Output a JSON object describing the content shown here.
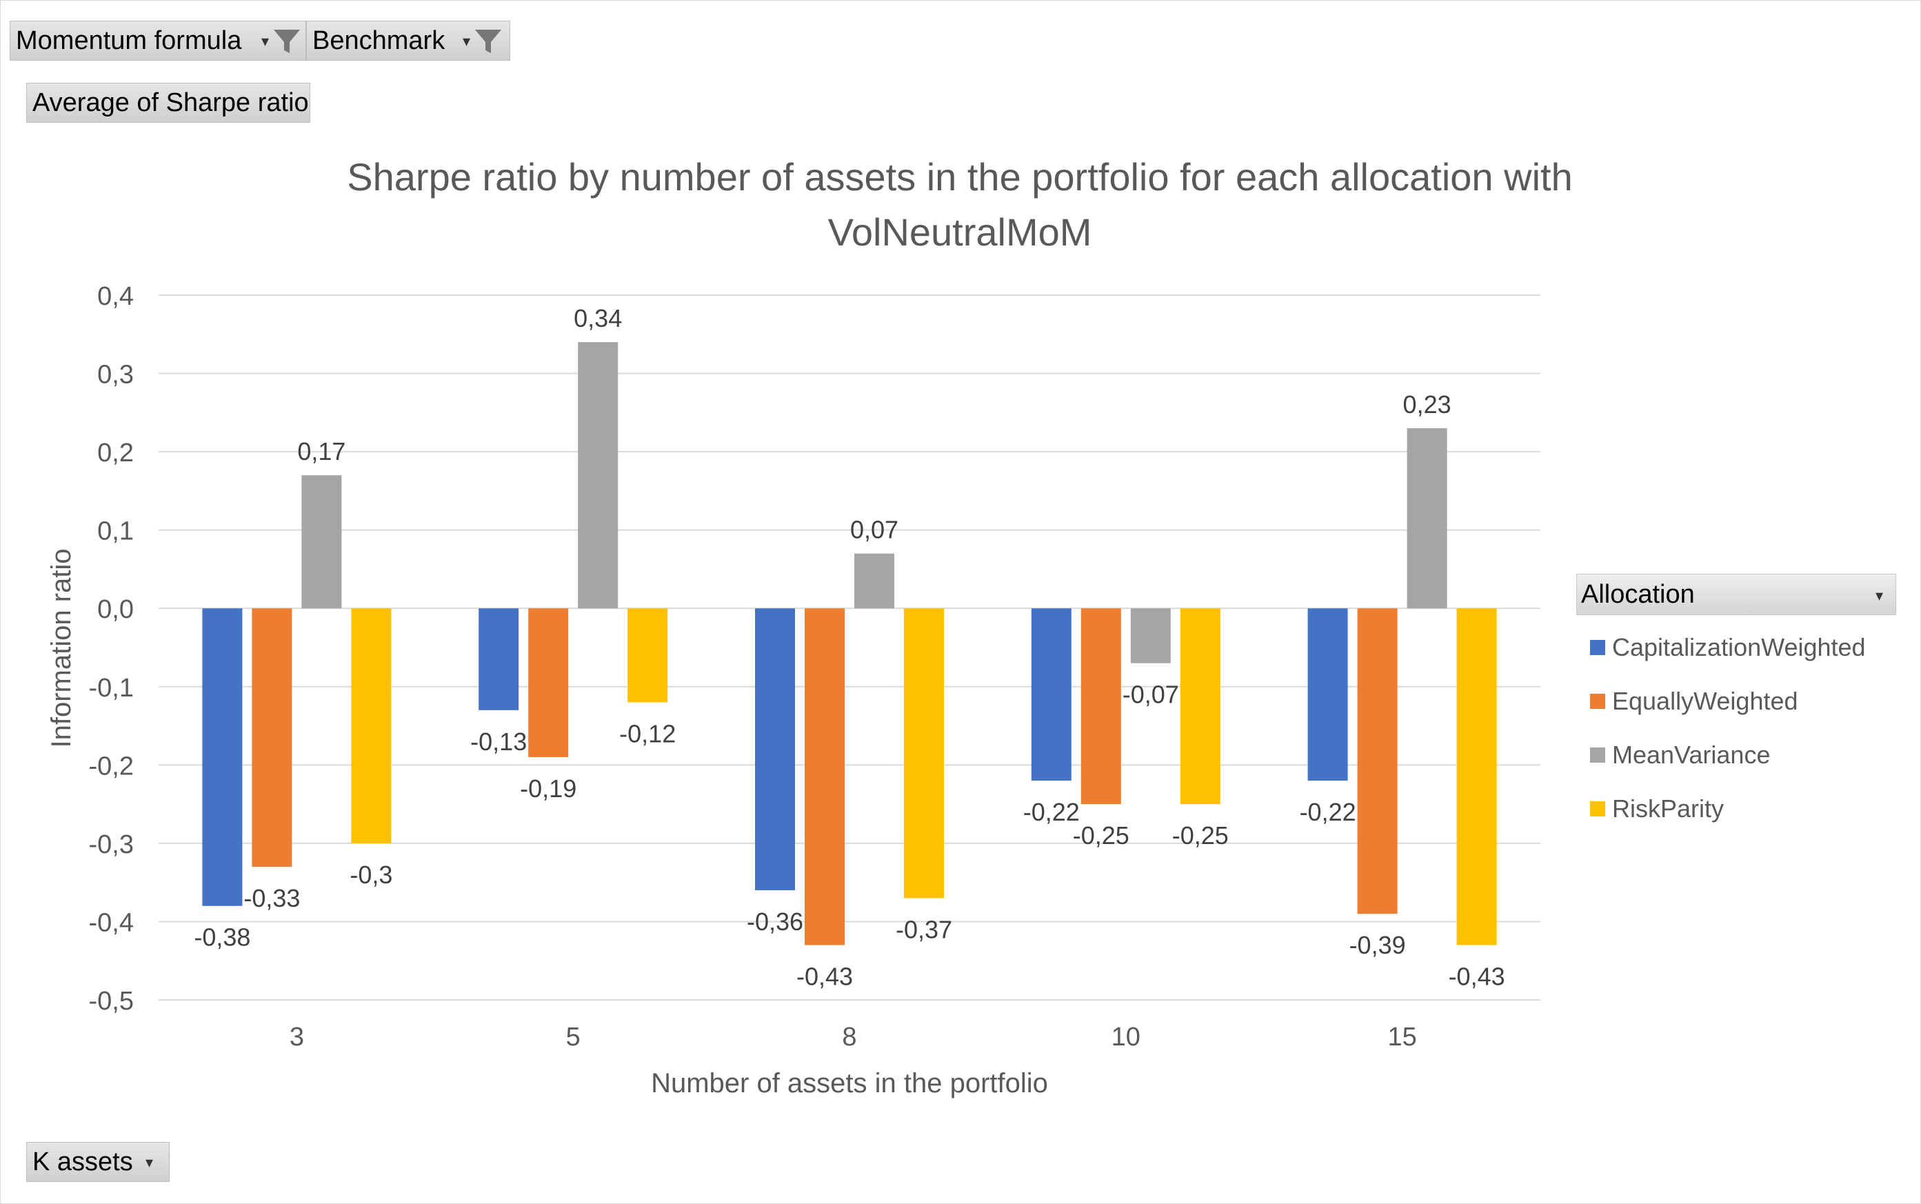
{
  "filters": {
    "momentum": {
      "label": "Momentum formula"
    },
    "benchmark": {
      "label": "Benchmark"
    }
  },
  "values_field": {
    "label": "Average  of Sharpe ratio"
  },
  "axis_field": {
    "label": "K assets"
  },
  "legend": {
    "title": "Allocation"
  },
  "colors": {
    "CapitalizationWeighted": "#4472C4",
    "EquallyWeighted": "#ED7D31",
    "MeanVariance": "#A5A5A5",
    "RiskParity": "#FFC000"
  },
  "chart_data": {
    "type": "bar",
    "title": "Sharpe ratio by number of assets in the portfolio for each allocation with VolNeutralMoM",
    "title_lines": [
      "Sharpe ratio by number of assets in the portfolio for each allocation with",
      "VolNeutralMoM"
    ],
    "xlabel": "Number of assets in the portfolio",
    "ylabel": "Information ratio",
    "categories": [
      "3",
      "5",
      "8",
      "10",
      "15"
    ],
    "ylim": [
      -0.5,
      0.4
    ],
    "yticks": [
      "0,4",
      "0,3",
      "0,2",
      "0,1",
      "0,0",
      "-0,1",
      "-0,2",
      "-0,3",
      "-0,4",
      "-0,5"
    ],
    "grid": true,
    "legend_position": "right",
    "series": [
      {
        "name": "CapitalizationWeighted",
        "values": [
          -0.38,
          -0.13,
          -0.36,
          -0.22,
          -0.22
        ],
        "labels": [
          "-0,38",
          "-0,13",
          "-0,36",
          "-0,22",
          "-0,22"
        ]
      },
      {
        "name": "EquallyWeighted",
        "values": [
          -0.33,
          -0.19,
          -0.43,
          -0.25,
          -0.39
        ],
        "labels": [
          "-0,33",
          "-0,19",
          "-0,43",
          "-0,25",
          "-0,39"
        ]
      },
      {
        "name": "MeanVariance",
        "values": [
          0.17,
          0.34,
          0.07,
          -0.07,
          0.23
        ],
        "labels": [
          "0,17",
          "0,34",
          "0,07",
          "-0,07",
          "0,23"
        ]
      },
      {
        "name": "RiskParity",
        "values": [
          -0.3,
          -0.12,
          -0.37,
          -0.25,
          -0.43
        ],
        "labels": [
          "-0,3",
          "-0,12",
          "-0,37",
          "-0,25",
          "-0,43"
        ]
      }
    ]
  }
}
